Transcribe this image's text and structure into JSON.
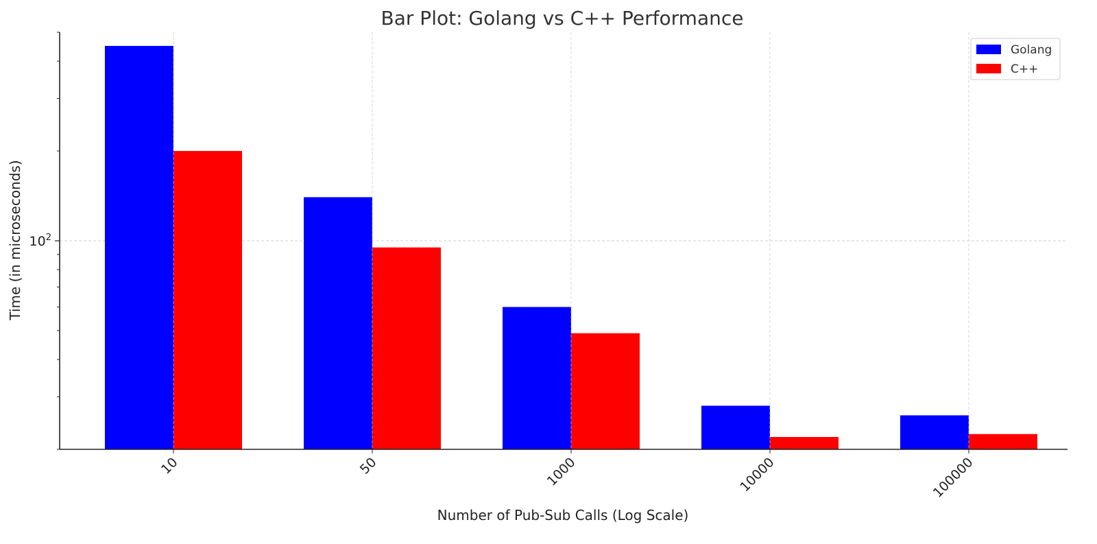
{
  "chart_data": {
    "type": "bar",
    "title": "Bar Plot: Golang vs C++ Performance",
    "xlabel": "Number of Pub-Sub Calls (Log Scale)",
    "ylabel": "Time (in microseconds)",
    "yscale": "log",
    "ylim": [
      20,
      500
    ],
    "y_tick_labels": [
      {
        "value": 100,
        "base": "10",
        "exp": "2"
      }
    ],
    "categories": [
      "10",
      "50",
      "1000",
      "10000",
      "100000"
    ],
    "series": [
      {
        "name": "Golang",
        "color": "#0000ff",
        "values": [
          450,
          140,
          60,
          28,
          26
        ]
      },
      {
        "name": "C++",
        "color": "#ff0000",
        "values": [
          200,
          95,
          49,
          22,
          22.5
        ]
      }
    ],
    "grid": true,
    "legend_position": "top-right"
  }
}
